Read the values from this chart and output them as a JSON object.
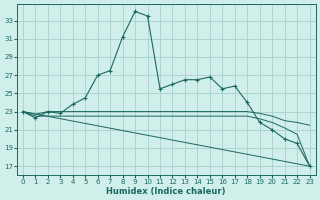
{
  "xlabel": "Humidex (Indice chaleur)",
  "bg_color": "#d0eeea",
  "grid_color": "#a8d0cc",
  "line_color": "#1a6860",
  "ylim": [
    16.0,
    34.8
  ],
  "yticks": [
    17,
    19,
    21,
    23,
    25,
    27,
    29,
    31,
    33
  ],
  "xlim": [
    -0.5,
    23.5
  ],
  "xticks": [
    0,
    1,
    2,
    3,
    4,
    5,
    6,
    7,
    8,
    9,
    10,
    11,
    12,
    13,
    14,
    15,
    16,
    17,
    18,
    19,
    20,
    21,
    22,
    23
  ],
  "main_x": [
    0,
    1,
    2,
    3,
    4,
    5,
    6,
    7,
    8,
    9,
    10,
    11,
    12,
    13,
    14,
    15,
    16,
    17,
    18,
    19,
    20,
    21,
    22,
    23
  ],
  "main_y": [
    23.0,
    22.3,
    23.0,
    22.8,
    23.8,
    24.5,
    27.0,
    27.5,
    31.2,
    34.0,
    33.5,
    25.5,
    26.0,
    26.5,
    26.5,
    26.8,
    25.5,
    25.8,
    24.0,
    21.8,
    21.0,
    20.0,
    19.5,
    17.0
  ],
  "line2_x": [
    0,
    1,
    2,
    3,
    4,
    5,
    6,
    7,
    8,
    9,
    10,
    11,
    12,
    13,
    14,
    15,
    16,
    17,
    18,
    19,
    20,
    21,
    22,
    23
  ],
  "line2_y": [
    23.0,
    22.7,
    23.0,
    23.0,
    23.0,
    23.0,
    23.0,
    23.0,
    23.0,
    23.0,
    23.0,
    23.0,
    23.0,
    23.0,
    23.0,
    23.0,
    23.0,
    23.0,
    23.0,
    22.8,
    22.5,
    22.0,
    21.8,
    21.5
  ],
  "line3_x": [
    0,
    1,
    2,
    3,
    4,
    5,
    6,
    7,
    8,
    9,
    10,
    11,
    12,
    13,
    14,
    15,
    16,
    17,
    18,
    19,
    20,
    21,
    22,
    23
  ],
  "line3_y": [
    23.0,
    22.5,
    22.5,
    22.5,
    22.5,
    22.5,
    22.5,
    22.5,
    22.5,
    22.5,
    22.5,
    22.5,
    22.5,
    22.5,
    22.5,
    22.5,
    22.5,
    22.5,
    22.5,
    22.2,
    21.8,
    21.2,
    20.5,
    17.0
  ],
  "line4_x": [
    0,
    23
  ],
  "line4_y": [
    23.0,
    17.0
  ]
}
